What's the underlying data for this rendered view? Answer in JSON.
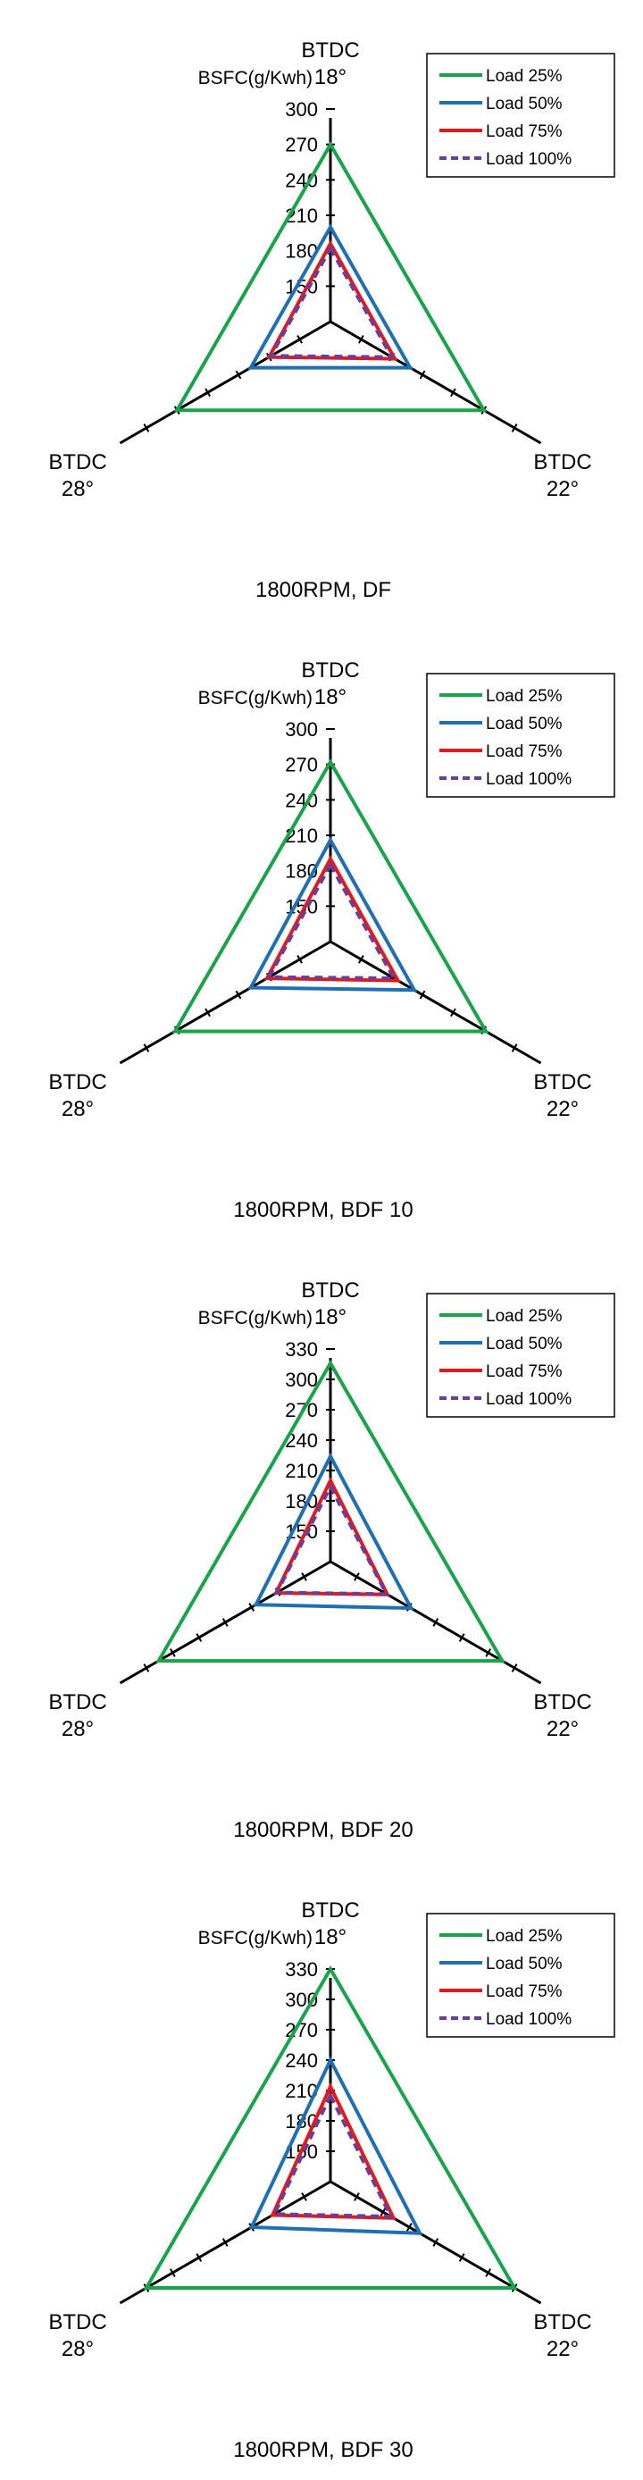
{
  "chart_data": [
    {
      "type": "radar",
      "caption": "1800RPM, DF",
      "radial_label": "BSFC(g/Kwh)",
      "axes": [
        {
          "line1": "BTDC",
          "line2": "18°"
        },
        {
          "line1": "BTDC",
          "line2": "22°"
        },
        {
          "line1": "BTDC",
          "line2": "28°"
        }
      ],
      "ticks": [
        "150",
        "180",
        "210",
        "240",
        "270",
        "300"
      ],
      "rlim": [
        120,
        300
      ],
      "series": [
        {
          "name": "Load 25%",
          "color": "#1aa34a",
          "dash": false,
          "values": [
            270,
            270,
            270
          ]
        },
        {
          "name": "Load 50%",
          "color": "#1f6fb2",
          "dash": false,
          "values": [
            200,
            198,
            198
          ]
        },
        {
          "name": "Load 75%",
          "color": "#e31a1c",
          "dash": false,
          "values": [
            186,
            183,
            180
          ]
        },
        {
          "name": "Load 100%",
          "color": "#6a3d9a",
          "dash": true,
          "values": [
            182,
            180,
            178
          ]
        }
      ]
    },
    {
      "type": "radar",
      "caption": "1800RPM, BDF 10",
      "radial_label": "BSFC(g/Kwh)",
      "axes": [
        {
          "line1": "BTDC",
          "line2": "18°"
        },
        {
          "line1": "BTDC",
          "line2": "22°"
        },
        {
          "line1": "BTDC",
          "line2": "28°"
        }
      ],
      "ticks": [
        "150",
        "180",
        "210",
        "240",
        "270",
        "300"
      ],
      "rlim": [
        120,
        300
      ],
      "series": [
        {
          "name": "Load 25%",
          "color": "#1aa34a",
          "dash": false,
          "values": [
            272,
            272,
            272
          ]
        },
        {
          "name": "Load 50%",
          "color": "#1f6fb2",
          "dash": false,
          "values": [
            206,
            202,
            198
          ]
        },
        {
          "name": "Load 75%",
          "color": "#e31a1c",
          "dash": false,
          "values": [
            190,
            186,
            182
          ]
        },
        {
          "name": "Load 100%",
          "color": "#6a3d9a",
          "dash": true,
          "values": [
            185,
            182,
            180
          ]
        }
      ]
    },
    {
      "type": "radar",
      "caption": "1800RPM, BDF 20",
      "radial_label": "BSFC(g/Kwh)",
      "axes": [
        {
          "line1": "BTDC",
          "line2": "18°"
        },
        {
          "line1": "BTDC",
          "line2": "22°"
        },
        {
          "line1": "BTDC",
          "line2": "28°"
        }
      ],
      "ticks": [
        "150",
        "180",
        "210",
        "240",
        "270",
        "300",
        "330"
      ],
      "rlim": [
        120,
        330
      ],
      "series": [
        {
          "name": "Load 25%",
          "color": "#1aa34a",
          "dash": false,
          "values": [
            316,
            316,
            316
          ]
        },
        {
          "name": "Load 50%",
          "color": "#1f6fb2",
          "dash": false,
          "values": [
            224,
            212,
            205
          ]
        },
        {
          "name": "Load 75%",
          "color": "#e31a1c",
          "dash": false,
          "values": [
            200,
            185,
            182
          ]
        },
        {
          "name": "Load 100%",
          "color": "#6a3d9a",
          "dash": true,
          "values": [
            194,
            184,
            181
          ]
        }
      ]
    },
    {
      "type": "radar",
      "caption": "1800RPM, BDF 30",
      "radial_label": "BSFC(g/Kwh)",
      "axes": [
        {
          "line1": "BTDC",
          "line2": "18°"
        },
        {
          "line1": "BTDC",
          "line2": "22°"
        },
        {
          "line1": "BTDC",
          "line2": "28°"
        }
      ],
      "ticks": [
        "150",
        "180",
        "210",
        "240",
        "270",
        "300",
        "330"
      ],
      "rlim": [
        120,
        330
      ],
      "series": [
        {
          "name": "Load 25%",
          "color": "#1aa34a",
          "dash": false,
          "values": [
            330,
            330,
            330
          ]
        },
        {
          "name": "Load 50%",
          "color": "#1f6fb2",
          "dash": false,
          "values": [
            240,
            222,
            210
          ]
        },
        {
          "name": "Load 75%",
          "color": "#e31a1c",
          "dash": false,
          "values": [
            214,
            192,
            186
          ]
        },
        {
          "name": "Load 100%",
          "color": "#6a3d9a",
          "dash": true,
          "values": [
            205,
            189,
            184
          ]
        }
      ]
    }
  ]
}
